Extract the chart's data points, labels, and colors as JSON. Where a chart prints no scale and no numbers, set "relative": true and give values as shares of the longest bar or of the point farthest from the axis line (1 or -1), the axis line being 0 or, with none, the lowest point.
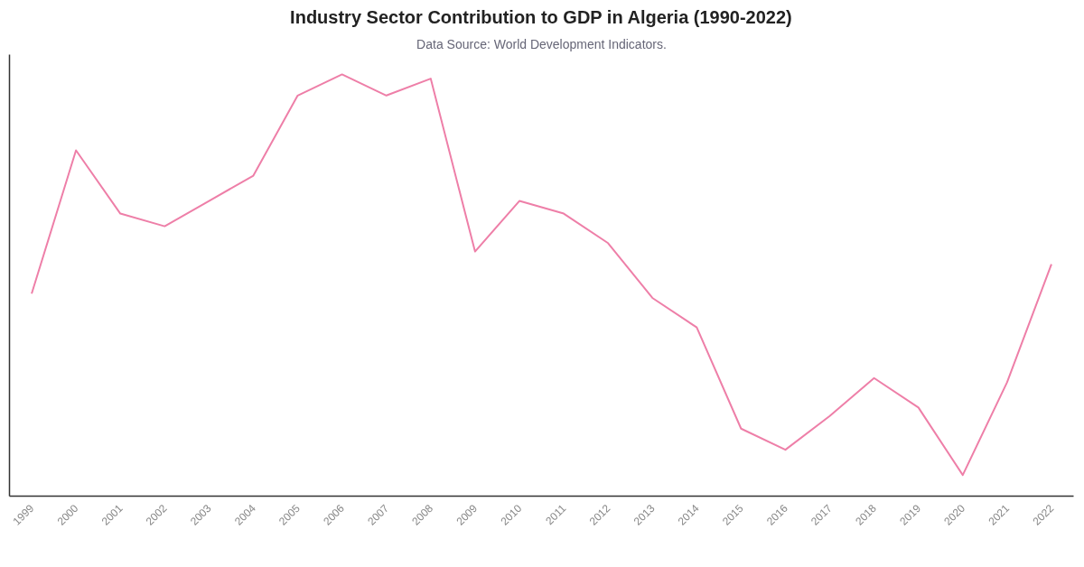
{
  "chart_data": {
    "type": "line",
    "title": "Industry Sector Contribution to GDP in Algeria (1990-2022)",
    "subtitle": "Data Source: World Development Indicators.",
    "categories": [
      "1999",
      "2000",
      "2001",
      "2002",
      "2003",
      "2004",
      "2005",
      "2006",
      "2007",
      "2008",
      "2009",
      "2010",
      "2011",
      "2012",
      "2013",
      "2014",
      "2015",
      "2016",
      "2017",
      "2018",
      "2019",
      "2020",
      "2021",
      "2022"
    ],
    "relative": true,
    "grid": false,
    "series": [
      {
        "color": "#ee7fa8",
        "values": [
          0.48,
          0.82,
          0.67,
          0.64,
          0.7,
          0.76,
          0.95,
          1.0,
          0.95,
          0.99,
          0.58,
          0.7,
          0.67,
          0.6,
          0.47,
          0.4,
          0.16,
          0.11,
          0.19,
          0.28,
          0.21,
          0.05,
          0.27,
          0.55
        ]
      }
    ]
  }
}
